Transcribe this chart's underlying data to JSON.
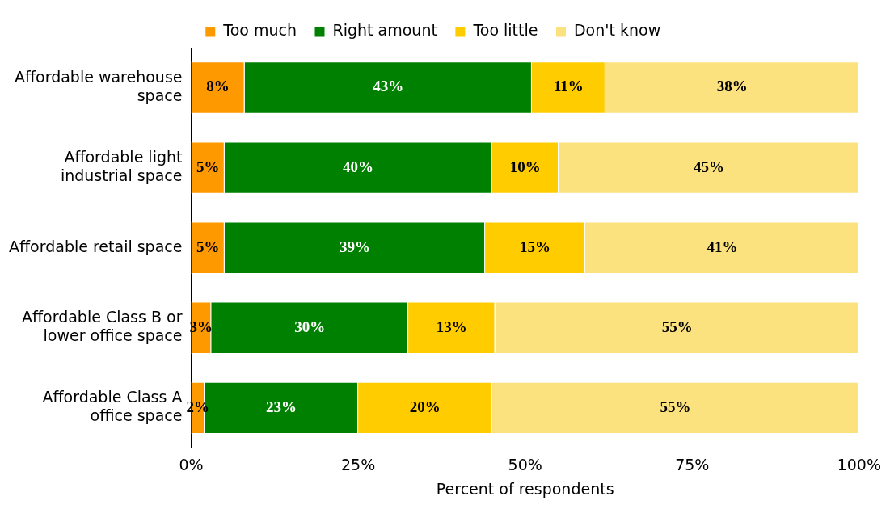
{
  "chart_data": {
    "type": "bar",
    "orientation": "horizontal",
    "stacked": true,
    "xlabel": "Percent of respondents",
    "categories": [
      "Affordable warehouse space",
      "Affordable light industrial space",
      "Affordable retail space",
      "Affordable Class B or lower office space",
      "Affordable Class A office space"
    ],
    "series": [
      {
        "name": "Too much",
        "color": "#ff9900",
        "values": [
          8,
          5,
          5,
          3,
          2
        ],
        "value_labels": [
          "8%",
          "5%",
          "5%",
          "3%",
          "2%"
        ]
      },
      {
        "name": "Right amount",
        "color": "#008000",
        "values": [
          43,
          40,
          39,
          29.5,
          23
        ],
        "value_labels": [
          "43%",
          "40%",
          "39%",
          "30%",
          "23%"
        ]
      },
      {
        "name": "Too little",
        "color": "#ffcc00",
        "values": [
          11,
          10,
          15,
          13,
          20
        ],
        "value_labels": [
          "11%",
          "10%",
          "15%",
          "13%",
          "20%"
        ]
      },
      {
        "name": "Don't know",
        "color": "#fbe27e",
        "values": [
          38,
          45,
          41,
          54.5,
          55
        ],
        "value_labels": [
          "38%",
          "45%",
          "41%",
          "55%",
          "55%"
        ]
      }
    ],
    "xlim": [
      0,
      100
    ],
    "xticks": [
      {
        "value": 0,
        "label": "0%"
      },
      {
        "value": 25,
        "label": "25%"
      },
      {
        "value": 50,
        "label": "50%"
      },
      {
        "value": 75,
        "label": "75%"
      },
      {
        "value": 100,
        "label": "100%"
      }
    ],
    "grid": false,
    "legend": "top"
  }
}
